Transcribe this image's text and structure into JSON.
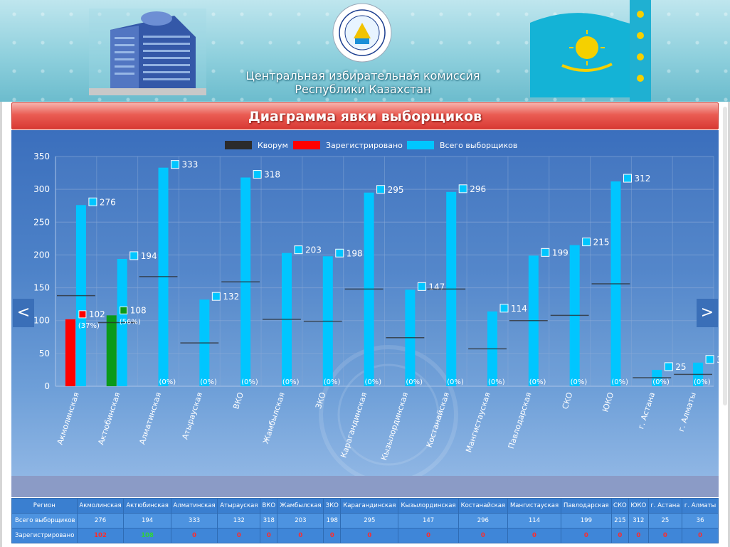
{
  "header": {
    "title_line1": "Центральная избирательная комиссия",
    "title_line2": "Республики Казахстан"
  },
  "page_title": "Диаграмма явки выборщиков",
  "nav": {
    "prev": "<",
    "next": ">"
  },
  "colors": {
    "total": "#00c6ff",
    "registered": "#ff0000",
    "registered_ok": "#0a9a1a",
    "quorum": "#2b2b2b"
  },
  "chart_data": {
    "type": "bar",
    "legend": [
      "Кворум",
      "Зарегистрировано",
      "Всего выборщиков"
    ],
    "legend_position": "top-center",
    "categories": [
      "Акмолинская",
      "Актюбинская",
      "Алматинская",
      "Атырауская",
      "ВКО",
      "Жамбылская",
      "ЗКО",
      "Карагандинская",
      "Кызылординская",
      "Костанайская",
      "Мангистауская",
      "Павлодарская",
      "СКО",
      "ЮКО",
      "г. Астана",
      "г. Алматы"
    ],
    "series": [
      {
        "name": "Всего выборщиков",
        "values": [
          276,
          194,
          333,
          132,
          318,
          203,
          198,
          295,
          147,
          296,
          114,
          199,
          215,
          312,
          25,
          36
        ]
      },
      {
        "name": "Зарегистрировано",
        "values": [
          102,
          108,
          0,
          0,
          0,
          0,
          0,
          0,
          0,
          0,
          0,
          0,
          0,
          0,
          0,
          0
        ]
      },
      {
        "name": "Кворум",
        "values": [
          138,
          97,
          167,
          66,
          159,
          102,
          99,
          148,
          74,
          148,
          57,
          100,
          108,
          156,
          13,
          18
        ]
      }
    ],
    "registered_labels": [
      "102",
      "108",
      "",
      "",
      "",
      "",
      "",
      "",
      "",
      "",
      "",
      "",
      "",
      "",
      "",
      ""
    ],
    "percent_labels": [
      "(37%)",
      "(56%)",
      "(0%)",
      "(0%)",
      "(0%)",
      "(0%)",
      "(0%)",
      "(0%)",
      "(0%)",
      "(0%)",
      "(0%)",
      "(0%)",
      "(0%)",
      "(0%)",
      "(0%)",
      "(0%)"
    ],
    "ylim": [
      0,
      350
    ],
    "yticks": [
      0,
      50,
      100,
      150,
      200,
      250,
      300,
      350
    ],
    "grid": true
  },
  "table": {
    "header_label": "Регион",
    "rows": [
      {
        "label": "Всего выборщиков",
        "values": [
          "276",
          "194",
          "333",
          "132",
          "318",
          "203",
          "198",
          "295",
          "147",
          "296",
          "114",
          "199",
          "215",
          "312",
          "25",
          "36"
        ]
      },
      {
        "label": "Зарегистрировано",
        "values": [
          "102",
          "108",
          "0",
          "0",
          "0",
          "0",
          "0",
          "0",
          "0",
          "0",
          "0",
          "0",
          "0",
          "0",
          "0",
          "0"
        ]
      }
    ]
  }
}
